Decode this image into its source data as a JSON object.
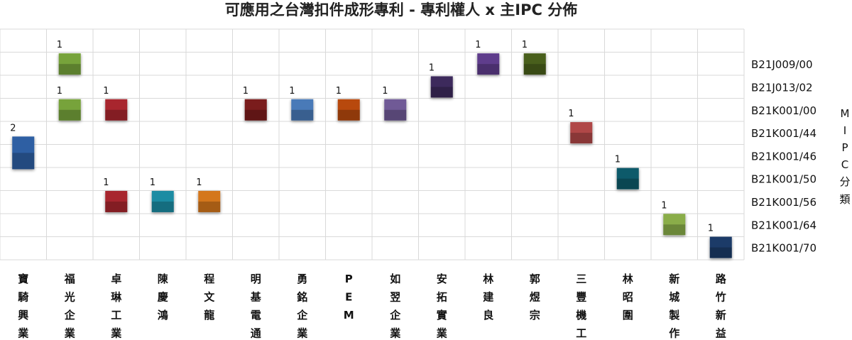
{
  "chart_data": {
    "type": "scatter",
    "title": "可應用之台灣扣件成形專利 - 專利權人 x 主IPC 分佈",
    "ylabel": "MIPC分類",
    "xlabel": "",
    "categories": [
      "寶騎興業",
      "福光企業",
      "卓琳工業",
      "陳慶鴻",
      "程文龍",
      "明基電通",
      "勇銘企業",
      "PEM",
      "如翌企業",
      "安拓實業",
      "林建良",
      "郭煜宗",
      "三豐機工",
      "林昭圍",
      "新城製作",
      "路竹新益"
    ],
    "y_categories": [
      "B21J009/00",
      "B21J013/02",
      "B21K001/00",
      "B21K001/44",
      "B21K001/46",
      "B21K001/50",
      "B21K001/56",
      "B21K001/64",
      "B21K001/70"
    ],
    "grid": true,
    "points": [
      {
        "x": "寶騎興業",
        "y": "B21K001/46",
        "value": 2,
        "color": "#2e5fa3",
        "label": ""
      },
      {
        "x": "福光企業",
        "y": "B21J009/00",
        "value": 1,
        "color": "#77a33a",
        "label": ""
      },
      {
        "x": "福光企業",
        "y": "B21K001/00",
        "value": 1,
        "color": "#77a33a",
        "label": ""
      },
      {
        "x": "卓琳工業",
        "y": "B21K001/00",
        "value": 1,
        "color": "#a8272e",
        "label": ""
      },
      {
        "x": "卓琳工業",
        "y": "B21K001/56",
        "value": 1,
        "color": "#a8272e",
        "label": ""
      },
      {
        "x": "陳慶鴻",
        "y": "B21K001/56",
        "value": 1,
        "color": "#1f8ca3",
        "label": ""
      },
      {
        "x": "程文龍",
        "y": "B21K001/56",
        "value": 1,
        "color": "#d4771f",
        "label": ""
      },
      {
        "x": "明基電通",
        "y": "B21K001/00",
        "value": 1,
        "color": "#7a1a1c",
        "label": ""
      },
      {
        "x": "勇銘企業",
        "y": "B21K001/00",
        "value": 1,
        "color": "#4a7ab8",
        "label": ""
      },
      {
        "x": "PEM",
        "y": "B21K001/00",
        "value": 1,
        "color": "#b84a0e",
        "label": ""
      },
      {
        "x": "如翌企業",
        "y": "B21K001/00",
        "value": 1,
        "color": "#6f5a96",
        "label": ""
      },
      {
        "x": "安拓實業",
        "y": "B21J013/02",
        "value": 1,
        "color": "#3e2a5c",
        "label": ""
      },
      {
        "x": "林建良",
        "y": "B21J009/00",
        "value": 1,
        "color": "#5e3d8c",
        "label": ""
      },
      {
        "x": "郭煜宗",
        "y": "B21J009/00",
        "value": 1,
        "color": "#4a5e1c",
        "label": ""
      },
      {
        "x": "三豐機工",
        "y": "B21K001/44",
        "value": 1,
        "color": "#b04646",
        "label": ""
      },
      {
        "x": "林昭圍",
        "y": "B21K001/50",
        "value": 1,
        "color": "#0e5a6b",
        "label": ""
      },
      {
        "x": "新城製作",
        "y": "B21K001/64",
        "value": 1,
        "color": "#8aad4a",
        "label": ""
      },
      {
        "x": "路竹新益",
        "y": "B21K001/70",
        "value": 1,
        "color": "#1b3a68",
        "label": ""
      }
    ]
  }
}
